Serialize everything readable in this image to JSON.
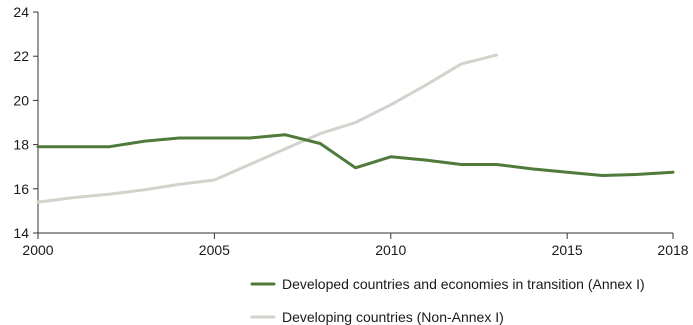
{
  "chart_data": {
    "type": "line",
    "title": "",
    "xlabel": "",
    "ylabel": "",
    "xlim": [
      2000,
      2018
    ],
    "ylim": [
      14,
      24
    ],
    "x_ticks": [
      2000,
      2005,
      2010,
      2015,
      2018
    ],
    "x_tick_labels": [
      "2000",
      "2005",
      "2010",
      "2015",
      "2018"
    ],
    "y_ticks": [
      14,
      16,
      18,
      20,
      22,
      24
    ],
    "y_tick_labels": [
      "14",
      "16",
      "18",
      "20",
      "22",
      "24"
    ],
    "grid": false,
    "legend_position": "bottom",
    "series": [
      {
        "name": "Developed countries and economies in transition (Annex I)",
        "color": "#4f7a3a",
        "x": [
          2000,
          2001,
          2002,
          2003,
          2004,
          2005,
          2006,
          2007,
          2008,
          2009,
          2010,
          2011,
          2012,
          2013,
          2014,
          2015,
          2016,
          2017,
          2018
        ],
        "values": [
          17.9,
          17.9,
          17.9,
          18.15,
          18.3,
          18.3,
          18.3,
          18.45,
          18.05,
          16.95,
          17.45,
          17.3,
          17.1,
          17.1,
          16.9,
          16.75,
          16.6,
          16.65,
          16.75
        ]
      },
      {
        "name": "Developing countries (Non-Annex I)",
        "color": "#d3d3cc",
        "x": [
          2000,
          2001,
          2002,
          2003,
          2004,
          2005,
          2006,
          2007,
          2008,
          2009,
          2010,
          2011,
          2012,
          2013
        ],
        "values": [
          15.4,
          15.6,
          15.75,
          15.95,
          16.2,
          16.4,
          17.1,
          17.8,
          18.5,
          19.0,
          19.8,
          20.7,
          21.65,
          22.05
        ]
      }
    ]
  }
}
